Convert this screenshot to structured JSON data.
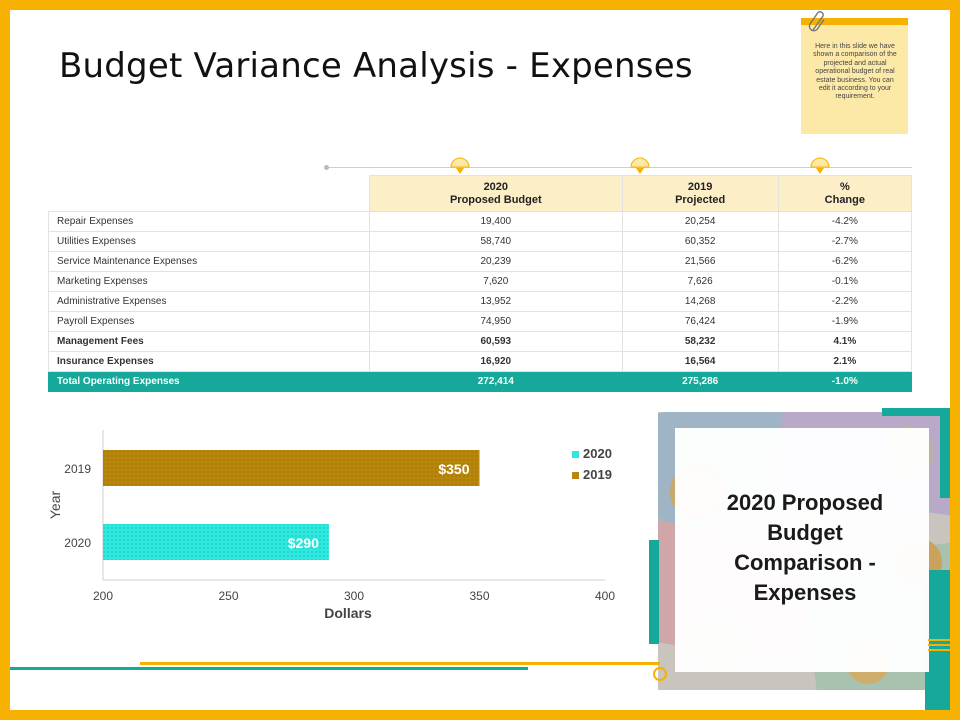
{
  "title": "Budget Variance Analysis - Expenses",
  "note": {
    "text": "Here in this slide we have shown a comparison of the projected and actual operational budget of real estate business. You can edit it according to your requirement."
  },
  "table": {
    "headers": [
      {
        "line1": "2020",
        "line2": "Proposed Budget"
      },
      {
        "line1": "2019",
        "line2": "Projected"
      },
      {
        "line1": "%",
        "line2": "Change"
      }
    ],
    "rows": [
      {
        "label": "Repair Expenses",
        "v2020": "19,400",
        "v2019": "20,254",
        "change": "-4.2%"
      },
      {
        "label": "Utilities Expenses",
        "v2020": "58,740",
        "v2019": "60,352",
        "change": "-2.7%"
      },
      {
        "label": "Service Maintenance Expenses",
        "v2020": "20,239",
        "v2019": "21,566",
        "change": "-6.2%"
      },
      {
        "label": "Marketing Expenses",
        "v2020": "7,620",
        "v2019": "7,626",
        "change": "-0.1%"
      },
      {
        "label": "Administrative Expenses",
        "v2020": "13,952",
        "v2019": "14,268",
        "change": "-2.2%"
      },
      {
        "label": "Payroll Expenses",
        "v2020": "74,950",
        "v2019": "76,424",
        "change": "-1.9%"
      },
      {
        "label": "Management Fees",
        "v2020": "60,593",
        "v2019": "58,232",
        "change": "4.1%"
      },
      {
        "label": "Insurance Expenses",
        "v2020": "16,920",
        "v2019": "16,564",
        "change": "2.1%"
      }
    ],
    "total": {
      "label": "Total Operating Expenses",
      "v2020": "272,414",
      "v2019": "275,286",
      "change": "-1.0%"
    }
  },
  "chart_data": {
    "type": "bar",
    "orientation": "horizontal",
    "categories": [
      "2019",
      "2020"
    ],
    "series": [
      {
        "name": "2020",
        "category": "2020",
        "value": 290,
        "label": "$290",
        "color": "#2CE8DE"
      },
      {
        "name": "2019",
        "category": "2019",
        "value": 350,
        "label": "$350",
        "color": "#B8860B"
      }
    ],
    "xlabel": "Dollars",
    "ylabel": "Year",
    "xlim": [
      200,
      400
    ],
    "xticks": [
      "200",
      "250",
      "300",
      "350",
      "400"
    ],
    "legend": "right"
  },
  "panel": {
    "caption": "2020 Proposed Budget Comparison - Expenses"
  },
  "colors": {
    "frame": "#F7B100",
    "teal": "#16A99B",
    "header_fill": "#FCEFC8",
    "note_fill": "#FCE9A8"
  }
}
